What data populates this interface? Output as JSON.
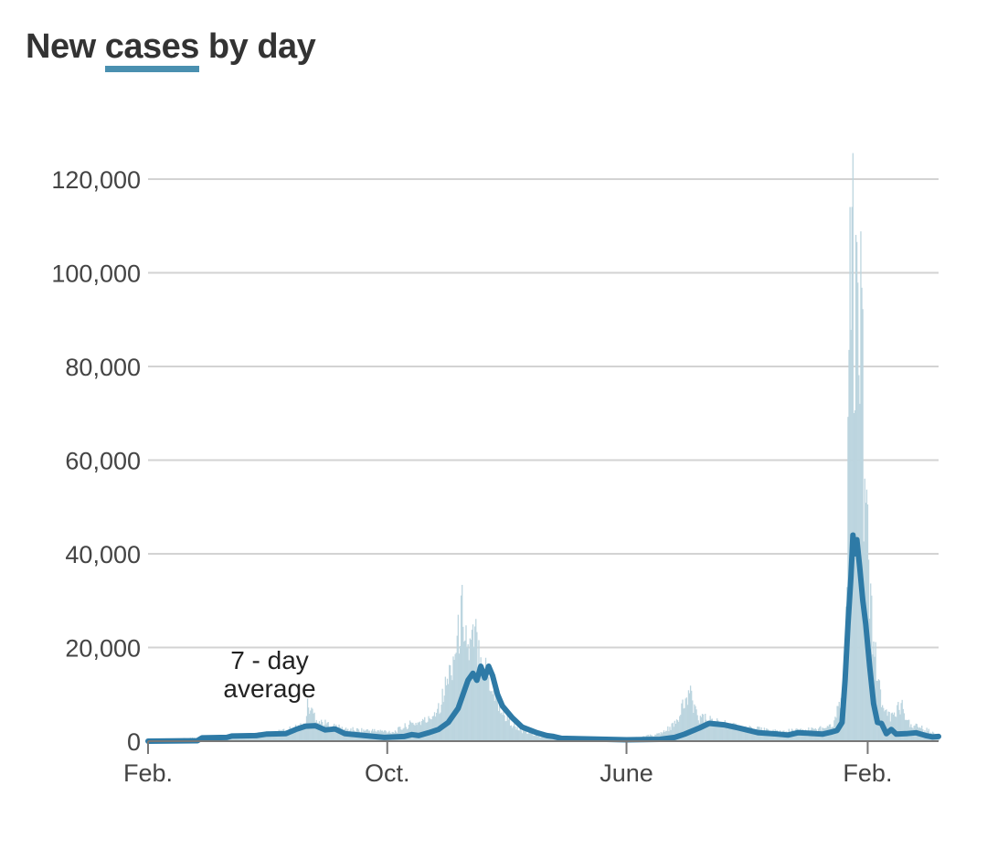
{
  "title": {
    "before": "New ",
    "highlight": "cases",
    "after": " by day"
  },
  "colors": {
    "line": "#2e7aa6",
    "bars": "#bcd5df",
    "grid": "#d3d3d3",
    "highlight": "#4a90b0"
  },
  "chart_data": {
    "type": "bar",
    "title": "New cases by day",
    "xlabel": "",
    "ylabel": "",
    "ylim": [
      0,
      125000
    ],
    "y_ticks": [
      0,
      20000,
      40000,
      60000,
      80000,
      100000,
      120000
    ],
    "y_tick_labels": [
      "0",
      "20,000",
      "40,000",
      "60,000",
      "80,000",
      "100,000",
      "120,000"
    ],
    "x_tick_labels": [
      "Feb.",
      "Oct.",
      "June",
      "Feb."
    ],
    "x_tick_days": [
      0,
      243,
      486,
      731
    ],
    "total_days": 803,
    "annotation": [
      "7 - day",
      "average"
    ],
    "series": [
      {
        "kind": "bars",
        "values": [
          [
            0,
            0
          ],
          [
            60,
            900
          ],
          [
            90,
            1200
          ],
          [
            130,
            1800
          ],
          [
            160,
            3500
          ],
          [
            162,
            7500
          ],
          [
            175,
            4000
          ],
          [
            200,
            2500
          ],
          [
            250,
            2000
          ],
          [
            265,
            3500
          ],
          [
            285,
            4500
          ],
          [
            297,
            8000
          ],
          [
            307,
            15000
          ],
          [
            315,
            22000
          ],
          [
            320,
            29000
          ],
          [
            325,
            19000
          ],
          [
            333,
            22000
          ],
          [
            340,
            17000
          ],
          [
            350,
            11000
          ],
          [
            360,
            6000
          ],
          [
            375,
            2500
          ],
          [
            400,
            900
          ],
          [
            430,
            500
          ],
          [
            470,
            600
          ],
          [
            486,
            400
          ],
          [
            520,
            1500
          ],
          [
            535,
            3500
          ],
          [
            545,
            8000
          ],
          [
            550,
            10000
          ],
          [
            560,
            5000
          ],
          [
            600,
            3000
          ],
          [
            640,
            2000
          ],
          [
            680,
            2500
          ],
          [
            695,
            3500
          ],
          [
            705,
            9000
          ],
          [
            708,
            16000
          ],
          [
            710,
            40000
          ],
          [
            713,
            93000
          ],
          [
            716,
            124000
          ],
          [
            718,
            60000
          ],
          [
            720,
            127000
          ],
          [
            722,
            75000
          ],
          [
            725,
            105000
          ],
          [
            727,
            45000
          ],
          [
            730,
            58000
          ],
          [
            733,
            30000
          ],
          [
            740,
            15000
          ],
          [
            745,
            8000
          ],
          [
            755,
            5000
          ],
          [
            765,
            7500
          ],
          [
            775,
            3500
          ],
          [
            795,
            2000
          ],
          [
            803,
            800
          ]
        ]
      },
      {
        "kind": "7-day average",
        "values": [
          [
            0,
            0
          ],
          [
            50,
            100
          ],
          [
            55,
            700
          ],
          [
            80,
            800
          ],
          [
            85,
            1100
          ],
          [
            110,
            1200
          ],
          [
            120,
            1500
          ],
          [
            140,
            1600
          ],
          [
            150,
            2500
          ],
          [
            160,
            3200
          ],
          [
            170,
            3300
          ],
          [
            180,
            2400
          ],
          [
            190,
            2600
          ],
          [
            200,
            1600
          ],
          [
            220,
            1200
          ],
          [
            240,
            800
          ],
          [
            260,
            1000
          ],
          [
            268,
            1400
          ],
          [
            275,
            1200
          ],
          [
            285,
            1800
          ],
          [
            295,
            2500
          ],
          [
            305,
            4000
          ],
          [
            315,
            7000
          ],
          [
            320,
            10000
          ],
          [
            325,
            13000
          ],
          [
            330,
            14500
          ],
          [
            334,
            13000
          ],
          [
            338,
            16000
          ],
          [
            342,
            13500
          ],
          [
            346,
            16000
          ],
          [
            350,
            14000
          ],
          [
            355,
            10000
          ],
          [
            360,
            7500
          ],
          [
            370,
            5000
          ],
          [
            380,
            3000
          ],
          [
            395,
            1800
          ],
          [
            405,
            1200
          ],
          [
            412,
            1000
          ],
          [
            420,
            600
          ],
          [
            440,
            500
          ],
          [
            486,
            300
          ],
          [
            520,
            400
          ],
          [
            535,
            800
          ],
          [
            545,
            1500
          ],
          [
            560,
            2800
          ],
          [
            570,
            3800
          ],
          [
            585,
            3500
          ],
          [
            600,
            2800
          ],
          [
            620,
            1800
          ],
          [
            640,
            1500
          ],
          [
            650,
            1300
          ],
          [
            660,
            1800
          ],
          [
            670,
            1700
          ],
          [
            685,
            1500
          ],
          [
            695,
            2000
          ],
          [
            700,
            2300
          ],
          [
            705,
            4000
          ],
          [
            708,
            13000
          ],
          [
            711,
            25000
          ],
          [
            714,
            35000
          ],
          [
            716,
            44000
          ],
          [
            718,
            40000
          ],
          [
            720,
            43000
          ],
          [
            723,
            37000
          ],
          [
            726,
            30000
          ],
          [
            729,
            25000
          ],
          [
            733,
            16000
          ],
          [
            737,
            8000
          ],
          [
            741,
            4000
          ],
          [
            745,
            3800
          ],
          [
            750,
            1600
          ],
          [
            755,
            2500
          ],
          [
            760,
            1500
          ],
          [
            770,
            1600
          ],
          [
            780,
            1800
          ],
          [
            790,
            1200
          ],
          [
            797,
            900
          ],
          [
            803,
            1000
          ]
        ]
      }
    ]
  }
}
